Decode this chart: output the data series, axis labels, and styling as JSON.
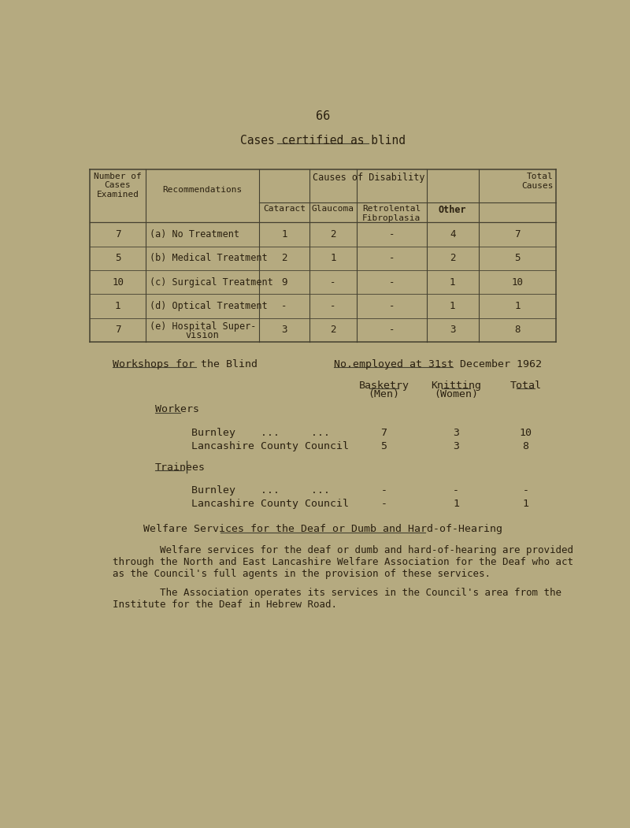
{
  "bg_color": "#b5aa80",
  "text_color": "#2a2010",
  "page_number": "66",
  "title": "Cases certified as blind",
  "table1_rows": [
    {
      "num": "7",
      "rec1": "(a) No Treatment",
      "rec2": "",
      "cat": "1",
      "gla": "2",
      "ret": "-",
      "oth": "4",
      "tot": "7"
    },
    {
      "num": "5",
      "rec1": "(b) Medical Treatment",
      "rec2": "",
      "cat": "2",
      "gla": "1",
      "ret": "-",
      "oth": "2",
      "tot": "5"
    },
    {
      "num": "10",
      "rec1": "(c) Surgical Treatment",
      "rec2": "",
      "cat": "9",
      "gla": "-",
      "ret": "-",
      "oth": "1",
      "tot": "10"
    },
    {
      "num": "1",
      "rec1": "(d) Optical Treatment",
      "rec2": "",
      "cat": "-",
      "gla": "-",
      "ret": "-",
      "oth": "1",
      "tot": "1"
    },
    {
      "num": "7",
      "rec1": "(e) Hospital Super-",
      "rec2": "vision",
      "cat": "3",
      "gla": "2",
      "ret": "-",
      "oth": "3",
      "tot": "8"
    }
  ],
  "workshops_title": "Workshops for the Blind",
  "workshops_right_title": "No.employed at 31st December 1962",
  "col_basketry": "Basketry",
  "col_basketry2": "(Men)",
  "col_knitting": "Knitting",
  "col_knitting2": "(Women)",
  "col_total": "Total",
  "workers_label": "Workers",
  "workers": [
    {
      "name": "Burnley    ...     ...",
      "basketry": "7",
      "knitting": "3",
      "total": "10"
    },
    {
      "name": "Lancashire County Council",
      "basketry": "5",
      "knitting": "3",
      "total": "8"
    }
  ],
  "trainees_label": "Trainees",
  "trainees": [
    {
      "name": "Burnley    ...     ...",
      "basketry": "-",
      "knitting": "-",
      "total": "-"
    },
    {
      "name": "Lancashire County Council",
      "basketry": "-",
      "knitting": "1",
      "total": "1"
    }
  ],
  "welfare_title": "Welfare Services for the Deaf or Dumb and Hard-of-Hearing",
  "welfare_para1": "        Welfare services for the deaf or dumb and hard-of-hearing are provided\nthrough the North and East Lancashire Welfare Association for the Deaf who act\nas the Council's full agents in the provision of these services.",
  "welfare_para2": "        The Association operates its services in the Council's area from the\nInstitute for the Deaf in Hebrew Road."
}
